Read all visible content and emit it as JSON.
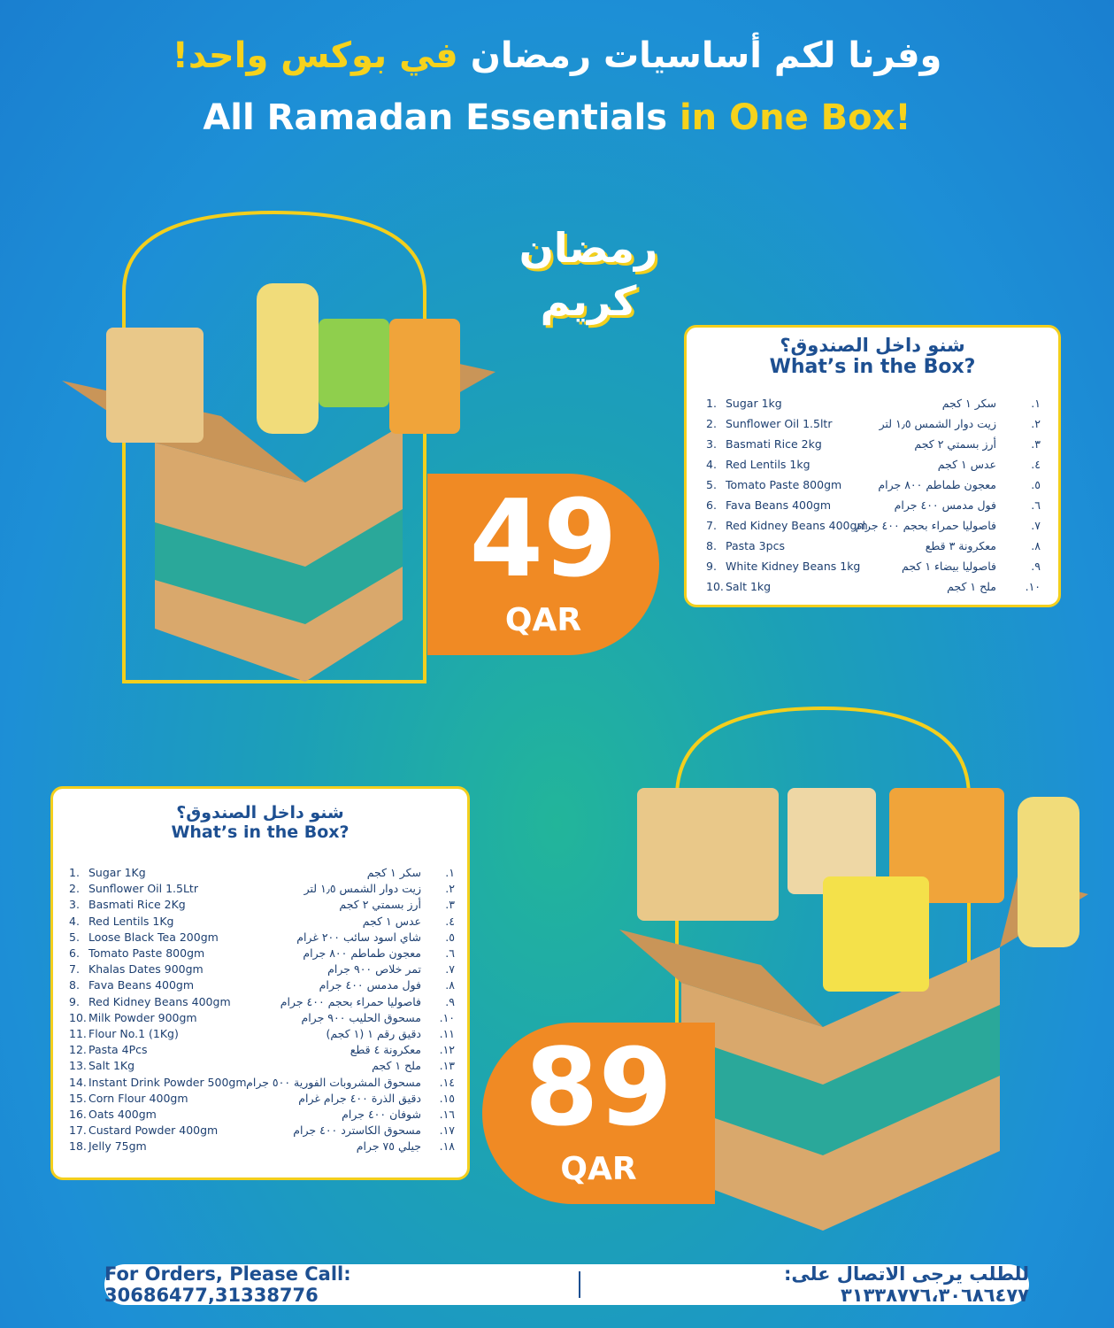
{
  "header": {
    "arabic": "وفرنا لكم أساسيات رمضان",
    "arabic_highlight": "في بوكس واحد!",
    "english": "All Ramadan Essentials",
    "english_highlight": "in One Box!"
  },
  "logo": "رمضان كريم",
  "offers": [
    {
      "price": 49,
      "currency": "QAR",
      "title_ar": "شنو داخل الصندوق؟",
      "title_en": "What’s in the Box?",
      "items": [
        {
          "n": "1.",
          "en": "Sugar 1kg",
          "an": "١.",
          "ar": "سكر ١ كجم"
        },
        {
          "n": "2.",
          "en": "Sunflower Oil 1.5ltr",
          "an": "٢.",
          "ar": "زيت دوار الشمس ١٫٥ لتر"
        },
        {
          "n": "3.",
          "en": "Basmati Rice 2kg",
          "an": "٣.",
          "ar": "أرز بسمتي ٢ كجم"
        },
        {
          "n": "4.",
          "en": "Red Lentils 1kg",
          "an": "٤.",
          "ar": "عدس ١ كجم"
        },
        {
          "n": "5.",
          "en": "Tomato Paste 800gm",
          "an": "٥.",
          "ar": "معجون طماطم ٨٠٠ جرام"
        },
        {
          "n": "6.",
          "en": "Fava Beans 400gm",
          "an": "٦.",
          "ar": "فول مدمس ٤٠٠ جرام"
        },
        {
          "n": "7.",
          "en": "Red Kidney Beans 400gm",
          "an": "٧.",
          "ar": "فاصوليا حمراء بحجم ٤٠٠ جرام"
        },
        {
          "n": "8.",
          "en": "Pasta 3pcs",
          "an": "٨.",
          "ar": "معكرونة ٣ قطع"
        },
        {
          "n": "9.",
          "en": "White Kidney Beans 1kg",
          "an": "٩.",
          "ar": "فاصوليا بيضاء ١ كجم"
        },
        {
          "n": "10.",
          "en": "Salt 1kg",
          "an": "١٠.",
          "ar": "ملح ١ كجم"
        }
      ]
    },
    {
      "price": 89,
      "currency": "QAR",
      "title_ar": "شنو داخل الصندوق؟",
      "title_en": "What’s in the Box?",
      "items": [
        {
          "n": "1.",
          "en": "Sugar 1Kg",
          "an": "١.",
          "ar": "سكر ١ كجم"
        },
        {
          "n": "2.",
          "en": "Sunflower Oil 1.5Ltr",
          "an": "٢.",
          "ar": "زيت دوار الشمس ١٫٥ لتر"
        },
        {
          "n": "3.",
          "en": "Basmati Rice 2Kg",
          "an": "٣.",
          "ar": "أرز بسمتي ٢ كجم"
        },
        {
          "n": "4.",
          "en": "Red Lentils 1Kg",
          "an": "٤.",
          "ar": "عدس ١ كجم"
        },
        {
          "n": "5.",
          "en": "Loose Black Tea 200gm",
          "an": "٥.",
          "ar": "شاي اسود سائب ٢٠٠ غرام"
        },
        {
          "n": "6.",
          "en": "Tomato Paste 800gm",
          "an": "٦.",
          "ar": "معجون طماطم ٨٠٠ جرام"
        },
        {
          "n": "7.",
          "en": "Khalas Dates 900gm",
          "an": "٧.",
          "ar": "تمر خلاص ٩٠٠ جرام"
        },
        {
          "n": "8.",
          "en": "Fava Beans 400gm",
          "an": "٨.",
          "ar": "فول مدمس ٤٠٠ جرام"
        },
        {
          "n": "9.",
          "en": "Red Kidney Beans 400gm",
          "an": "٩.",
          "ar": "فاصوليا حمراء بحجم ٤٠٠ جرام"
        },
        {
          "n": "10.",
          "en": "Milk Powder 900gm",
          "an": "١٠.",
          "ar": "مسحوق الحليب ٩٠٠ جرام"
        },
        {
          "n": "11.",
          "en": "Flour No.1 (1Kg)",
          "an": "١١.",
          "ar": "دقيق رقم ١ (١ كجم)"
        },
        {
          "n": "12.",
          "en": "Pasta 4Pcs",
          "an": "١٢.",
          "ar": "معكرونة ٤ قطع"
        },
        {
          "n": "13.",
          "en": "Salt 1Kg",
          "an": "١٣.",
          "ar": "ملح ١ كجم"
        },
        {
          "n": "14.",
          "en": "Instant Drink Powder 500gm",
          "an": "١٤.",
          "ar": "مسحوق المشروبات الفورية ٥٠٠ جرام"
        },
        {
          "n": "15.",
          "en": "Corn Flour 400gm",
          "an": "١٥.",
          "ar": "دقيق الذرة ٤٠٠ جرام غرام"
        },
        {
          "n": "16.",
          "en": "Oats 400gm",
          "an": "١٦.",
          "ar": "شوفان ٤٠٠ جرام"
        },
        {
          "n": "17.",
          "en": "Custard Powder 400gm",
          "an": "١٧.",
          "ar": "مسحوق الكاسترد ٤٠٠ جرام"
        },
        {
          "n": "18.",
          "en": "Jelly 75gm",
          "an": "١٨.",
          "ar": "جيلي ٧٥ جرام"
        }
      ]
    }
  ],
  "footer": {
    "english": "For Orders, Please Call: 30686477,31338776",
    "arabic": "للطلب يرجى الاتصال على: ٣١٣٣٨٧٧٦،٣٠٦٨٦٤٧٧"
  }
}
